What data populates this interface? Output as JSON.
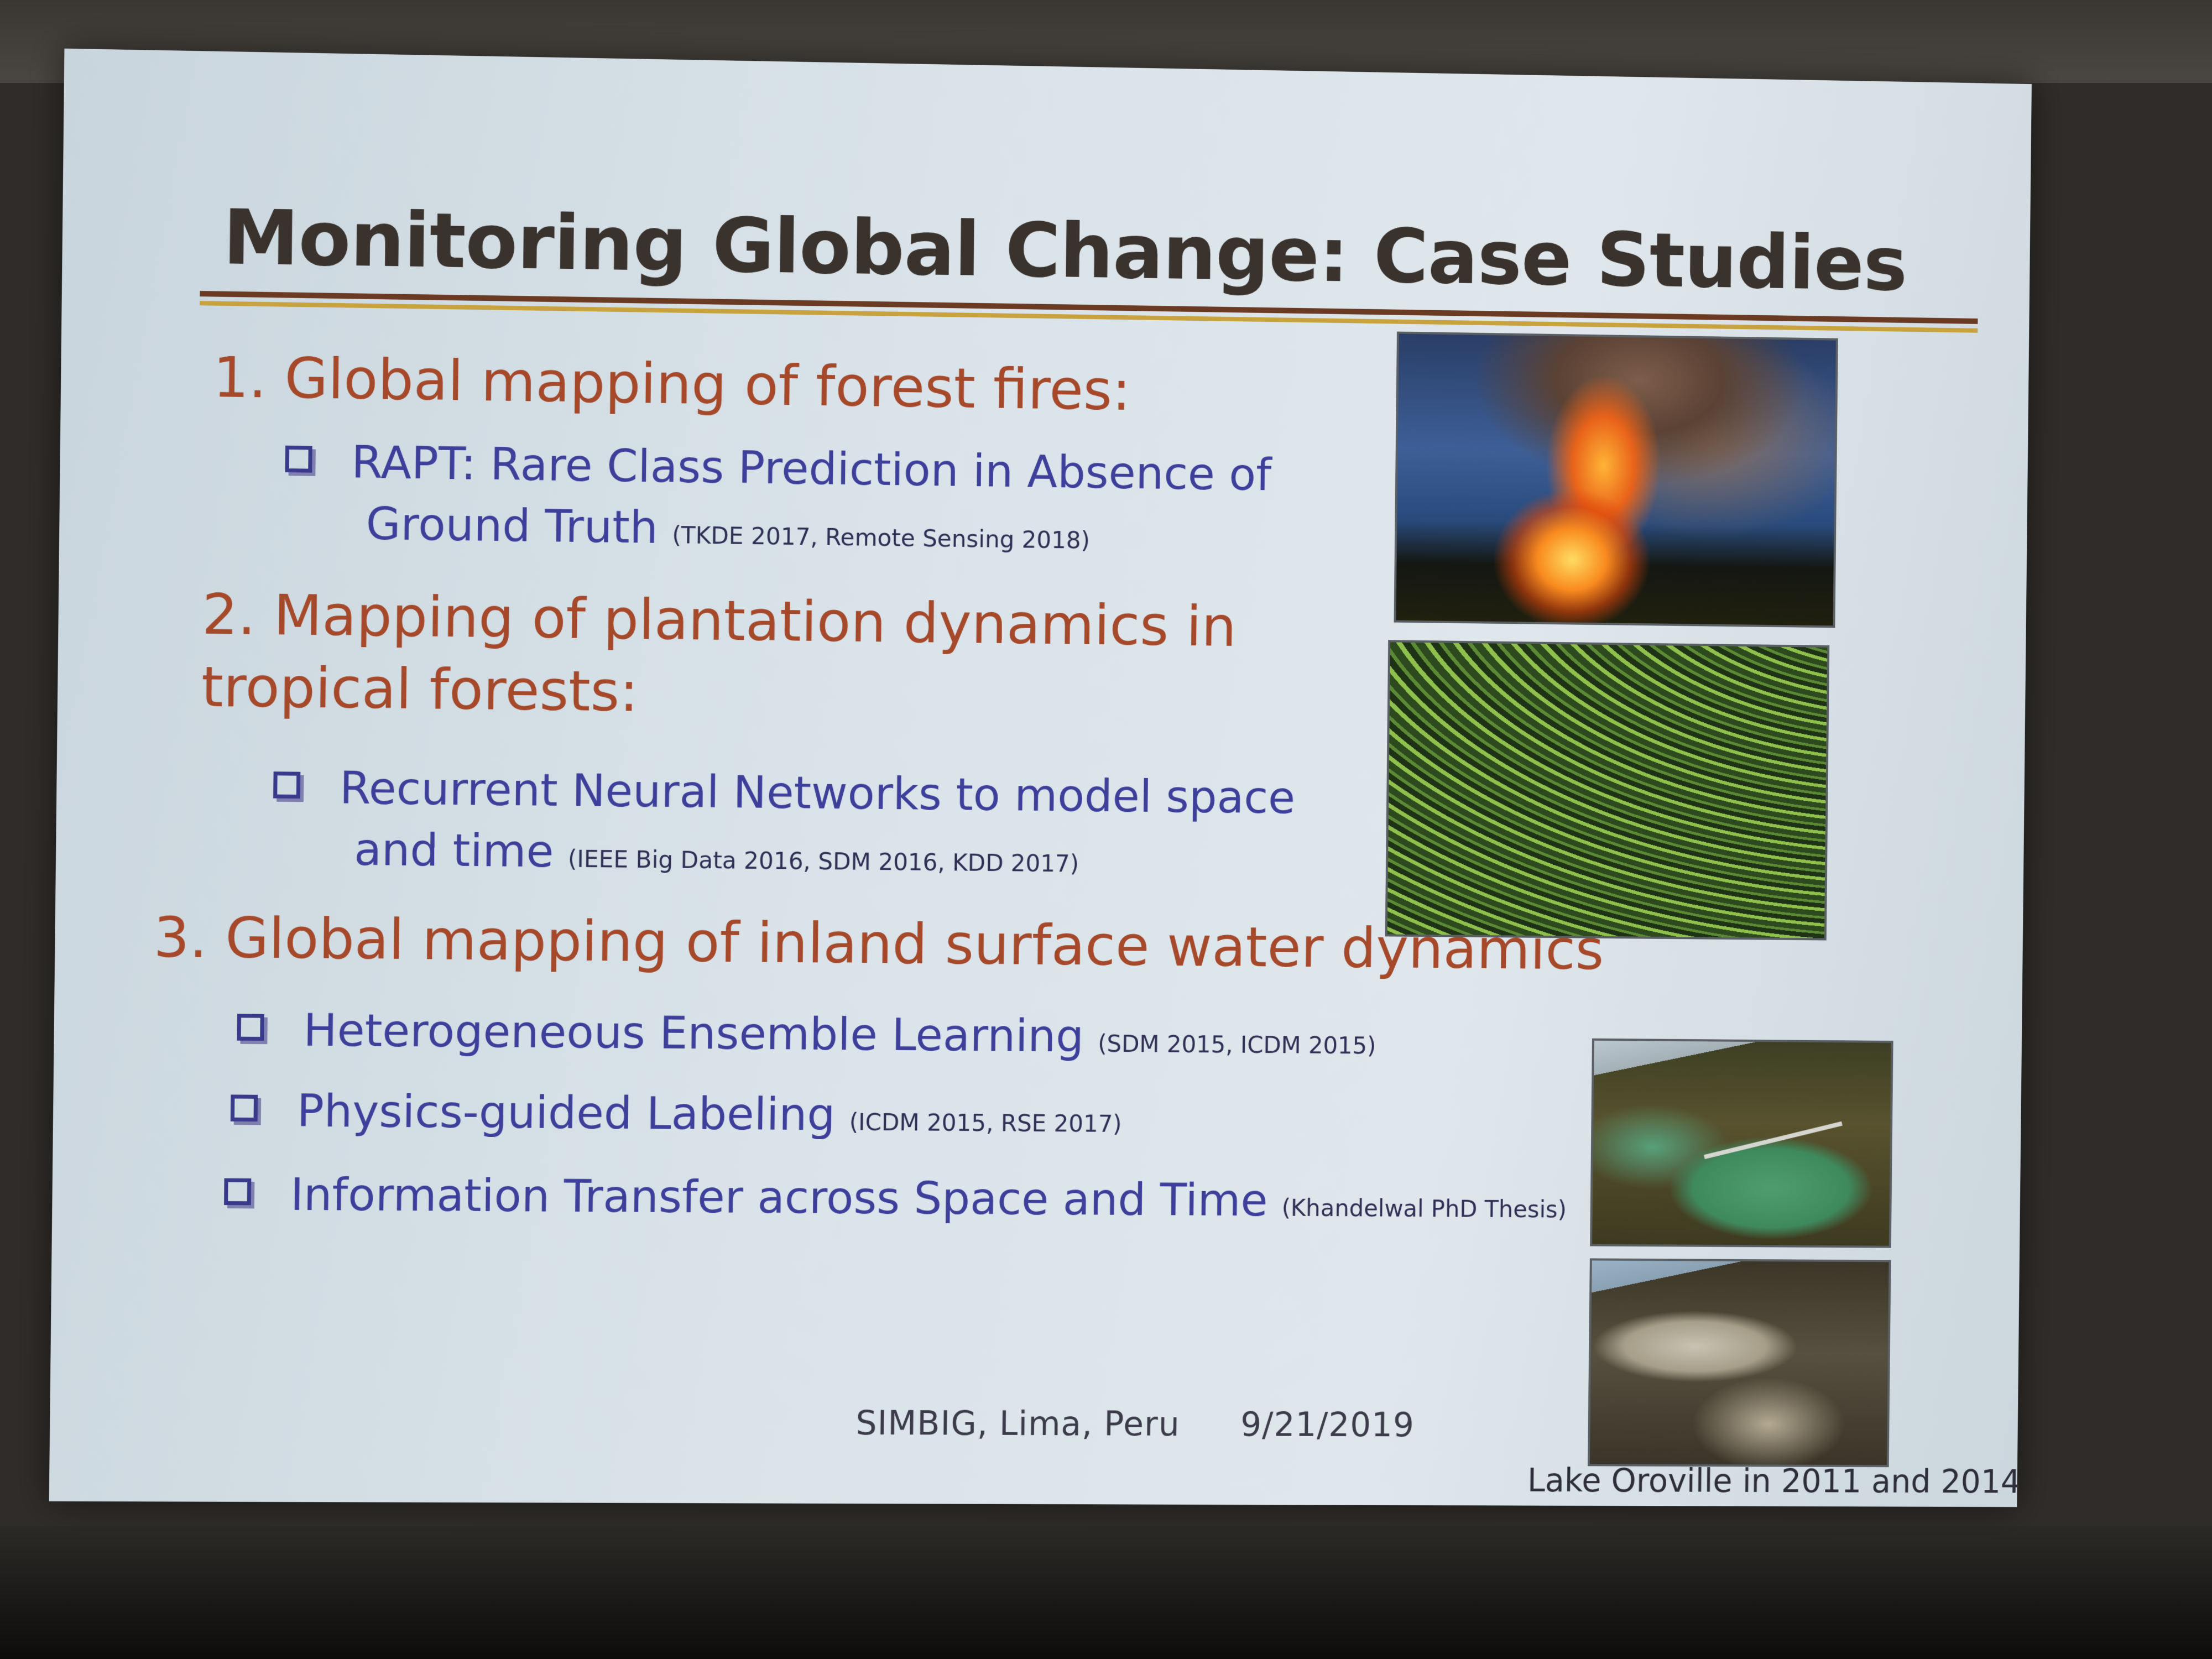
{
  "slide": {
    "title": "Monitoring Global Change: Case Studies",
    "sections": [
      {
        "heading": "1. Global mapping of forest fires:",
        "bullets": [
          {
            "lines": [
              "RAPT: Rare Class Prediction in Absence of",
              "Ground Truth"
            ],
            "citation": "(TKDE 2017, Remote Sensing 2018)"
          }
        ]
      },
      {
        "heading_lines": [
          "2. Mapping of plantation dynamics in",
          "tropical forests:"
        ],
        "bullets": [
          {
            "lines": [
              "Recurrent Neural Networks to model space",
              "and time"
            ],
            "citation": "(IEEE Big Data 2016, SDM 2016, KDD 2017)"
          }
        ]
      },
      {
        "heading": "3. Global mapping of inland surface water dynamics",
        "bullets": [
          {
            "text": "Heterogeneous Ensemble Learning",
            "citation": "(SDM 2015, ICDM 2015)"
          },
          {
            "text": "Physics-guided Labeling",
            "citation": "(ICDM 2015, RSE 2017)"
          },
          {
            "text": "Information Transfer across Space and Time",
            "citation": "(Khandelwal PhD Thesis)"
          }
        ]
      }
    ],
    "footer": {
      "event": "SIMBIG, Lima, Peru",
      "date": "9/21/2019"
    },
    "image_caption": "Lake Oroville in 2011 and 2014"
  }
}
